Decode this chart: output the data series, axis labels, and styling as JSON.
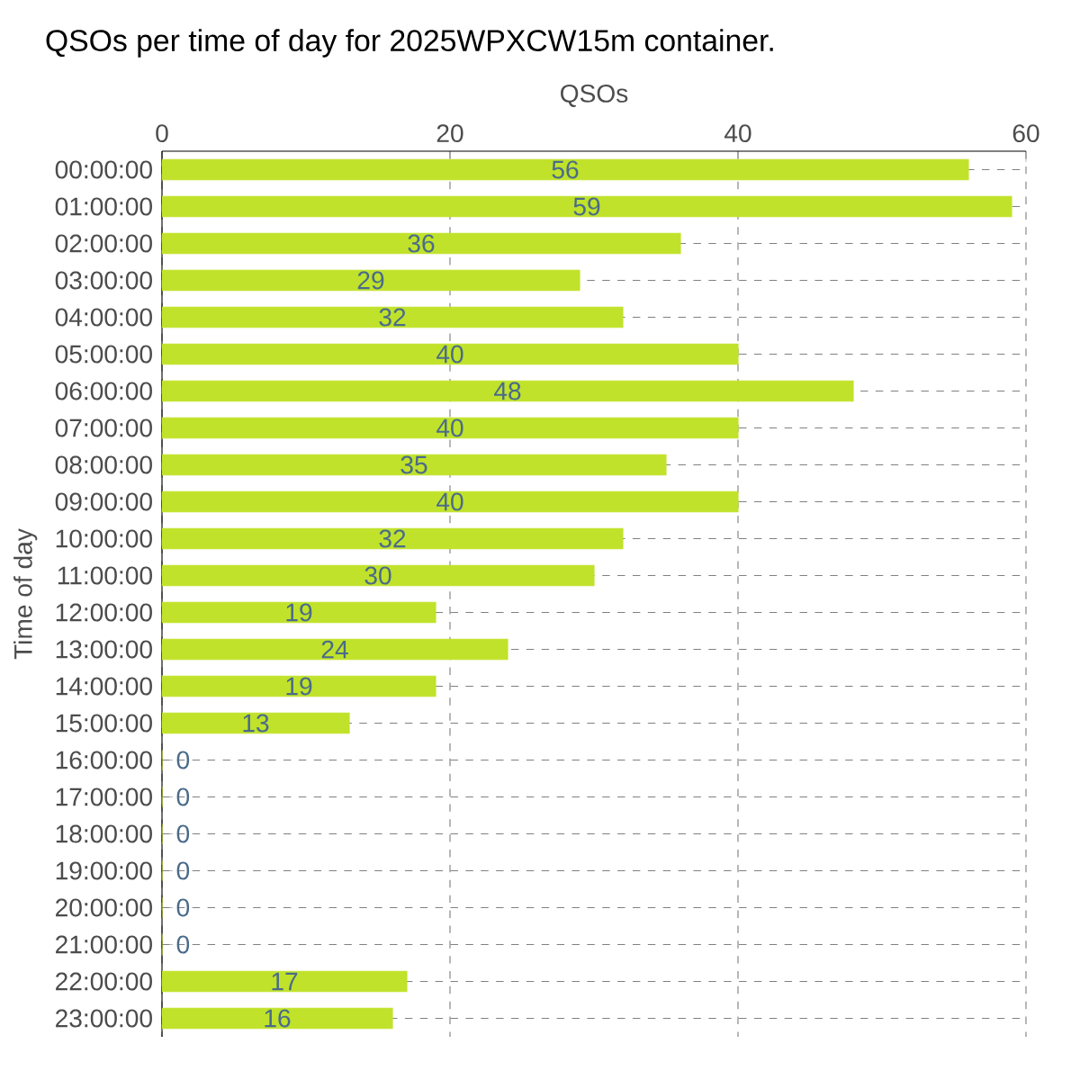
{
  "chart_data": {
    "type": "bar",
    "orientation": "horizontal",
    "title": "QSOs per time of day for 2025WPXCW15m container.",
    "xlabel": "QSOs",
    "ylabel": "Time of day",
    "categories": [
      "00:00:00",
      "01:00:00",
      "02:00:00",
      "03:00:00",
      "04:00:00",
      "05:00:00",
      "06:00:00",
      "07:00:00",
      "08:00:00",
      "09:00:00",
      "10:00:00",
      "11:00:00",
      "12:00:00",
      "13:00:00",
      "14:00:00",
      "15:00:00",
      "16:00:00",
      "17:00:00",
      "18:00:00",
      "19:00:00",
      "20:00:00",
      "21:00:00",
      "22:00:00",
      "23:00:00"
    ],
    "values": [
      56,
      59,
      36,
      29,
      32,
      40,
      48,
      40,
      35,
      40,
      32,
      30,
      19,
      24,
      19,
      13,
      0,
      0,
      0,
      0,
      0,
      0,
      17,
      16
    ],
    "color": "#c0e22a",
    "xlim": [
      0,
      60
    ],
    "xticks": [
      0,
      20,
      40,
      60
    ],
    "grid": true,
    "data_labels": true
  }
}
